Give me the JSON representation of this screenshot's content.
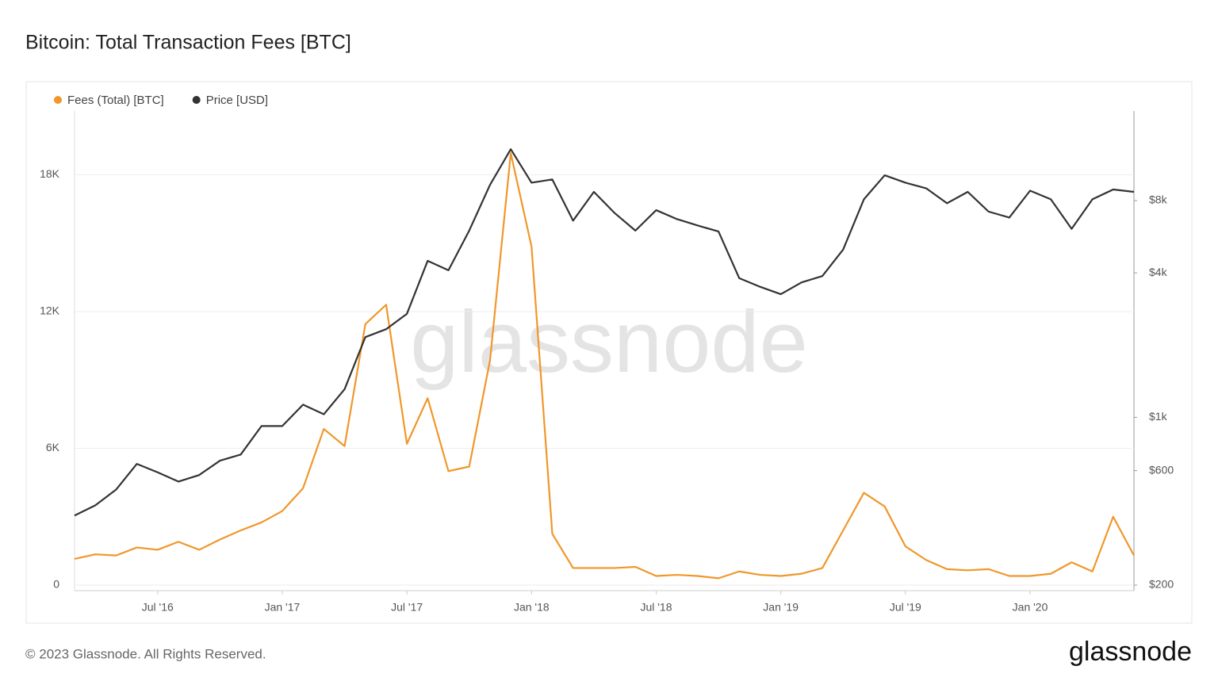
{
  "chart_data": {
    "type": "line",
    "title": "Bitcoin: Total Transaction Fees [BTC]",
    "x": [
      "2016-03",
      "2016-04",
      "2016-05",
      "2016-06",
      "2016-07",
      "2016-08",
      "2016-09",
      "2016-10",
      "2016-11",
      "2016-12",
      "2017-01",
      "2017-02",
      "2017-03",
      "2017-04",
      "2017-05",
      "2017-06",
      "2017-07",
      "2017-08",
      "2017-09",
      "2017-10",
      "2017-11",
      "2017-12",
      "2018-01",
      "2018-02",
      "2018-03",
      "2018-04",
      "2018-05",
      "2018-06",
      "2018-07",
      "2018-08",
      "2018-09",
      "2018-10",
      "2018-11",
      "2018-12",
      "2019-01",
      "2019-02",
      "2019-03",
      "2019-04",
      "2019-05",
      "2019-06",
      "2019-07",
      "2019-08",
      "2019-09",
      "2019-10",
      "2019-11",
      "2019-12",
      "2020-01",
      "2020-02",
      "2020-03",
      "2020-04",
      "2020-05",
      "2020-06"
    ],
    "xlim": [
      "2016-03",
      "2020-06"
    ],
    "xticks": [
      {
        "value": "2016-07",
        "label": "Jul '16"
      },
      {
        "value": "2017-01",
        "label": "Jan '17"
      },
      {
        "value": "2017-07",
        "label": "Jul '17"
      },
      {
        "value": "2018-01",
        "label": "Jan '18"
      },
      {
        "value": "2018-07",
        "label": "Jul '18"
      },
      {
        "value": "2019-01",
        "label": "Jan '19"
      },
      {
        "value": "2019-07",
        "label": "Jul '19"
      },
      {
        "value": "2020-01",
        "label": "Jan '20"
      }
    ],
    "series": [
      {
        "name": "Fees (Total) [BTC]",
        "color": "#f0972a",
        "values": [
          1150,
          1350,
          1300,
          1650,
          1550,
          1900,
          1550,
          2000,
          2400,
          2750,
          3250,
          4250,
          6850,
          6100,
          11450,
          12300,
          6200,
          8200,
          5000,
          5200,
          9850,
          18950,
          14850,
          2250,
          750,
          750,
          750,
          800,
          400,
          450,
          400,
          300,
          600,
          450,
          400,
          500,
          750,
          2400,
          4050,
          3450,
          1700,
          1100,
          700,
          650,
          700,
          400,
          400,
          500,
          1000,
          600,
          3000,
          1300
        ]
      },
      {
        "name": "Price [USD]",
        "color": "#333333",
        "axis": "y2",
        "values": [
          390,
          430,
          500,
          640,
          590,
          540,
          575,
          660,
          700,
          920,
          920,
          1130,
          1030,
          1310,
          2160,
          2330,
          2700,
          4490,
          4100,
          6000,
          9300,
          13100,
          9500,
          9800,
          6600,
          8700,
          7100,
          6000,
          7300,
          6700,
          6300,
          5950,
          3800,
          3500,
          3260,
          3650,
          3880,
          5000,
          8100,
          10200,
          9500,
          9000,
          7800,
          8700,
          7200,
          6800,
          8800,
          8100,
          6100,
          8100,
          8900,
          8700
        ]
      }
    ],
    "ylim": [
      0,
      20800
    ],
    "yticks": [
      0,
      {
        "value": 6000,
        "label": "6K"
      },
      {
        "value": 12000,
        "label": "12K"
      },
      {
        "value": 18000,
        "label": "18K"
      }
    ],
    "y2lim": [
      200,
      18900
    ],
    "y2log": true,
    "y2ticks": [
      {
        "value": 200,
        "label": "$200"
      },
      {
        "value": 600,
        "label": "$600"
      },
      {
        "value": 1000,
        "label": "$1k"
      },
      {
        "value": 4000,
        "label": "$4k"
      },
      {
        "value": 8000,
        "label": "$8k"
      }
    ],
    "grid": true,
    "watermark": "glassnode",
    "footer": "© 2023 Glassnode. All Rights Reserved.",
    "brand": "glassnode"
  }
}
